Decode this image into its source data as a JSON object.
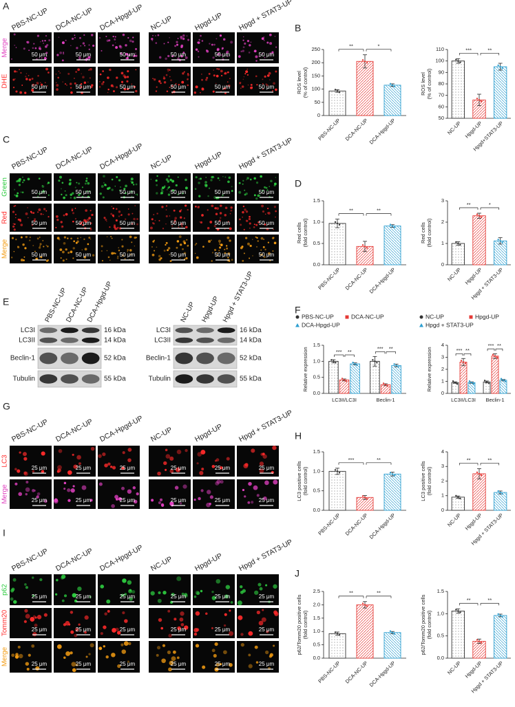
{
  "image_panels": [
    {
      "letter": "A",
      "columns": [
        "PBS-NC-UP",
        "DCA-NC-UP",
        "DCA-Hpgd-UP",
        "NC-UP",
        "Hpgd-UP",
        "Hpgd + STAT3-UP"
      ],
      "rows": [
        {
          "label": "Merge",
          "color": "#e040c0"
        },
        {
          "label": "DHE",
          "color": "#ff2a2a"
        }
      ],
      "scale": "50 μm"
    },
    {
      "letter": "C",
      "columns": [
        "PBS-NC-UP",
        "DCA-NC-UP",
        "DCA-Hpgd-UP",
        "NC-UP",
        "Hpgd-UP",
        "Hpgd + STAT3-UP"
      ],
      "rows": [
        {
          "label": "Green",
          "color": "#2ecc40"
        },
        {
          "label": "Red",
          "color": "#ff2a2a"
        },
        {
          "label": "Merge",
          "color": "#f39c12"
        }
      ],
      "scale": "50 μm"
    },
    {
      "letter": "G",
      "columns": [
        "PBS-NC-UP",
        "DCA-NC-UP",
        "DCA-Hpgd-UP",
        "NC-UP",
        "Hpgd-UP",
        "Hpgd + STAT3-UP"
      ],
      "rows": [
        {
          "label": "LC3",
          "color": "#ff2a2a"
        },
        {
          "label": "Merge",
          "color": "#e040c0"
        }
      ],
      "scale": "25 μm"
    },
    {
      "letter": "I",
      "columns": [
        "PBS-NC-UP",
        "DCA-NC-UP",
        "DCA-Hpgd-UP",
        "NC-UP",
        "Hpgd-UP",
        "Hpgd + STAT3-UP"
      ],
      "rows": [
        {
          "label": "p62",
          "color": "#2ecc40"
        },
        {
          "label": "Tomm20",
          "color": "#ff2a2a"
        },
        {
          "label": "Merge",
          "color": "#f39c12"
        }
      ],
      "scale": "25 μm"
    }
  ],
  "western_blot": {
    "letter": "E",
    "groups": [
      [
        "PBS-NC-UP",
        "DCA-NC-UP",
        "DCA-Hpgd-UP"
      ],
      [
        "NC-UP",
        "Hpgd-UP",
        "Hpgd + STAT3-UP"
      ]
    ],
    "rows": [
      {
        "proteins": [
          "LC3I",
          "LC3II"
        ],
        "sizes": [
          "16 kDa",
          "14 kDa"
        ]
      },
      {
        "proteins": [
          "Beclin-1"
        ],
        "sizes": [
          "52 kDa"
        ]
      },
      {
        "proteins": [
          "Tubulin"
        ],
        "sizes": [
          "55 kDa"
        ]
      }
    ]
  },
  "chart_panel_letters": [
    "B",
    "D",
    "F",
    "H",
    "J"
  ],
  "chart_data": [
    {
      "type": "bar",
      "ylabel": [
        "ROS level",
        "(% of control)"
      ],
      "categories": [
        "PBS-NC-UP",
        "DCA-NC-UP",
        "DCA-Hpgd-UP"
      ],
      "values": [
        93,
        205,
        115
      ],
      "errors": [
        5,
        25,
        5
      ],
      "colors": [
        "#333333",
        "#e53935",
        "#2e9fd0"
      ],
      "ylim": [
        0,
        250
      ],
      "yticks": [
        0,
        50,
        100,
        150,
        200,
        250
      ],
      "significance": [
        "**",
        "*"
      ]
    },
    {
      "type": "bar",
      "ylabel": [
        "ROS level",
        "(% of control)"
      ],
      "categories": [
        "NC-UP",
        "Hpgd-UP",
        "Hpgd+STAT3-UP"
      ],
      "values": [
        100,
        66,
        95
      ],
      "errors": [
        2,
        5,
        3
      ],
      "colors": [
        "#333333",
        "#e53935",
        "#2e9fd0"
      ],
      "ylim": [
        50,
        110
      ],
      "yticks": [
        50,
        60,
        70,
        80,
        90,
        100,
        110
      ],
      "significance": [
        "***",
        "**"
      ]
    },
    {
      "type": "bar",
      "ylabel": [
        "Red cells",
        "(fold control)"
      ],
      "categories": [
        "PBS-NC-UP",
        "DCA-NC-UP",
        "DCA-Hpgd-UP"
      ],
      "values": [
        0.97,
        0.43,
        0.91
      ],
      "errors": [
        0.1,
        0.12,
        0.03
      ],
      "colors": [
        "#333333",
        "#e53935",
        "#2e9fd0"
      ],
      "ylim": [
        0,
        1.5
      ],
      "yticks": [
        {
          "value": 0,
          "label": "0.0"
        },
        0.5,
        {
          "value": 1,
          "label": "1.0"
        },
        1.5
      ],
      "significance": [
        "**",
        "**"
      ]
    },
    {
      "type": "bar",
      "ylabel": [
        "Red cells",
        "(fold control)"
      ],
      "categories": [
        "NC-UP",
        "Hpgd-UP",
        "Hpgd + STAT3-UP"
      ],
      "values": [
        1.0,
        2.3,
        1.12
      ],
      "errors": [
        0.08,
        0.12,
        0.15
      ],
      "colors": [
        "#333333",
        "#e53935",
        "#2e9fd0"
      ],
      "ylim": [
        0,
        3
      ],
      "yticks": [
        0,
        1,
        2,
        3
      ],
      "significance": [
        "**",
        "*"
      ]
    },
    {
      "type": "grouped_bar",
      "ylabel": [
        "Relative expression"
      ],
      "categories": [
        "LC3II/LC3I",
        "Beclin-1"
      ],
      "series": [
        {
          "name": "PBS-NC-UP",
          "color": "#333333",
          "values": [
            1.0,
            1.0
          ],
          "errors": [
            0.05,
            0.15
          ]
        },
        {
          "name": "DCA-NC-UP",
          "color": "#e53935",
          "values": [
            0.42,
            0.27
          ],
          "errors": [
            0.03,
            0.03
          ]
        },
        {
          "name": "DCA-Hpgd-UP",
          "color": "#2e9fd0",
          "values": [
            0.92,
            0.87
          ],
          "errors": [
            0.03,
            0.04
          ]
        }
      ],
      "ylim": [
        0,
        1.5
      ],
      "yticks": [
        {
          "value": 0,
          "label": "0.0"
        },
        0.5,
        {
          "value": 1,
          "label": "1.0"
        },
        1.5
      ],
      "significance": [
        [
          "***",
          "**"
        ],
        [
          "***",
          "**"
        ]
      ]
    },
    {
      "type": "grouped_bar",
      "ylabel": [
        "Relative expression"
      ],
      "categories": [
        "LC3II/LC3I",
        "Beclin-1"
      ],
      "series": [
        {
          "name": "NC-UP",
          "color": "#333333",
          "values": [
            0.9,
            0.95
          ],
          "errors": [
            0.06,
            0.08
          ]
        },
        {
          "name": "Hpgd-UP",
          "color": "#e53935",
          "values": [
            2.6,
            3.1
          ],
          "errors": [
            0.3,
            0.2
          ]
        },
        {
          "name": "Hpgd + STAT3-UP",
          "color": "#2e9fd0",
          "values": [
            0.9,
            1.1
          ],
          "errors": [
            0.06,
            0.06
          ]
        }
      ],
      "ylim": [
        0,
        4
      ],
      "yticks": [
        0,
        1,
        2,
        3,
        4
      ],
      "significance": [
        [
          "***",
          "**"
        ],
        [
          "***",
          "**"
        ]
      ]
    },
    {
      "type": "bar",
      "ylabel": [
        "LC3 positive cells",
        "(fold control)"
      ],
      "categories": [
        "PBS-NC-UP",
        "DCA-NC-UP",
        "DCA-Hpgd-UP"
      ],
      "values": [
        1.0,
        0.33,
        0.93
      ],
      "errors": [
        0.08,
        0.05,
        0.05
      ],
      "colors": [
        "#333333",
        "#e53935",
        "#2e9fd0"
      ],
      "ylim": [
        0,
        1.5
      ],
      "yticks": [
        {
          "value": 0,
          "label": "0.0"
        },
        0.5,
        {
          "value": 1,
          "label": "1.0"
        },
        1.5
      ],
      "significance": [
        "***",
        "**"
      ]
    },
    {
      "type": "bar",
      "ylabel": [
        "LC3 positive cells",
        "(fold control)"
      ],
      "categories": [
        "NC-UP",
        "Hpgd-UP",
        "Hpgd + STAT3-UP"
      ],
      "values": [
        0.9,
        2.5,
        1.22
      ],
      "errors": [
        0.08,
        0.35,
        0.1
      ],
      "colors": [
        "#333333",
        "#e53935",
        "#2e9fd0"
      ],
      "ylim": [
        0,
        4
      ],
      "yticks": [
        0,
        1,
        2,
        3,
        4
      ],
      "significance": [
        "**",
        "**"
      ]
    },
    {
      "type": "bar",
      "ylabel": [
        "p62/Tomm20 positive cells",
        "(fold control)"
      ],
      "categories": [
        "PBS-NC-UP",
        "DCA-NC-UP",
        "DCA-Hpgd-UP"
      ],
      "values": [
        0.92,
        2.0,
        0.96
      ],
      "errors": [
        0.06,
        0.12,
        0.04
      ],
      "colors": [
        "#333333",
        "#e53935",
        "#2e9fd0"
      ],
      "ylim": [
        0,
        2.5
      ],
      "yticks": [
        {
          "value": 0,
          "label": "0.0"
        },
        0.5,
        {
          "value": 1,
          "label": "1.0"
        },
        1.5,
        {
          "value": 2,
          "label": "2.0"
        },
        2.5
      ],
      "significance": [
        "**",
        "**"
      ]
    },
    {
      "type": "bar",
      "ylabel": [
        "p62/Tomm20 positive cells",
        "(fold control)"
      ],
      "categories": [
        "NC-UP",
        "Hpgd-UP",
        "Hpgd + STAT3-UP"
      ],
      "values": [
        1.06,
        0.38,
        0.96
      ],
      "errors": [
        0.05,
        0.05,
        0.03
      ],
      "colors": [
        "#333333",
        "#e53935",
        "#2e9fd0"
      ],
      "ylim": [
        0,
        1.5
      ],
      "yticks": [
        {
          "value": 0,
          "label": "0.0"
        },
        0.5,
        {
          "value": 1,
          "label": "1.0"
        },
        1.5
      ],
      "significance": [
        "**",
        "**"
      ]
    }
  ]
}
